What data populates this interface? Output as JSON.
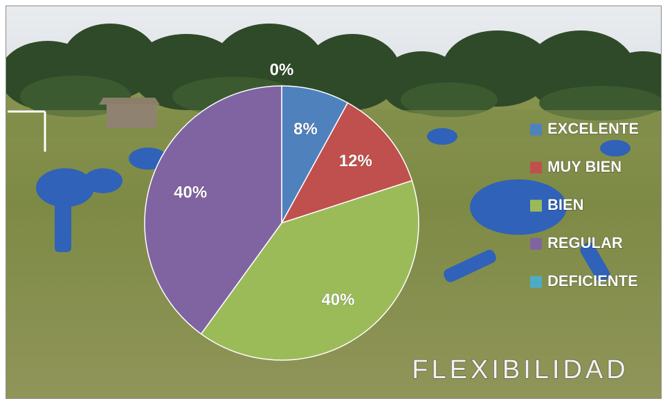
{
  "chart_data": {
    "type": "pie",
    "title": "FLEXIBILIDAD",
    "categories": [
      "EXCELENTE",
      "MUY BIEN",
      "BIEN",
      "REGULAR",
      "DEFICIENTE"
    ],
    "values": [
      8,
      12,
      40,
      40,
      0
    ],
    "data_labels": [
      "8%",
      "12%",
      "40%",
      "40%",
      "0%"
    ],
    "colors": [
      "#4f81bd",
      "#c0504d",
      "#9bbb59",
      "#8064a2",
      "#4bacc6"
    ],
    "legend_position": "right",
    "background": "photo of soccer players in blue uniforms stretching on a grass field"
  }
}
